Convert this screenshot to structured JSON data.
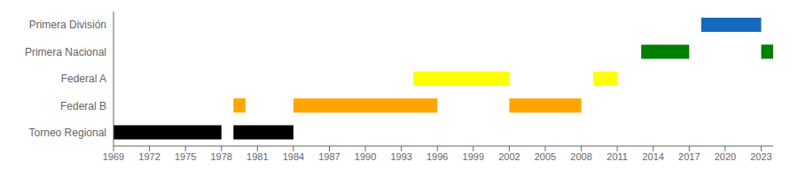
{
  "chart_data": {
    "type": "bar",
    "orientation": "horizontal",
    "categories": [
      "Primera División",
      "Primera Nacional",
      "Federal A",
      "Federal B",
      "Torneo Regional"
    ],
    "values": [
      [
        [
          2018,
          2023
        ]
      ],
      [
        [
          2013,
          2017
        ],
        [
          2023,
          2024
        ]
      ],
      [
        [
          1994,
          2002
        ],
        [
          2009,
          2011
        ]
      ],
      [
        [
          1979,
          1980
        ],
        [
          1984,
          1996
        ],
        [
          2002,
          2008
        ]
      ],
      [
        [
          1969,
          1978
        ],
        [
          1979,
          1984
        ]
      ]
    ],
    "colors": [
      "#1469BC",
      "#008000",
      "#FFFF00",
      "#FFA500",
      "#000000"
    ],
    "xlim": [
      1969,
      2024
    ],
    "xticks": [
      1969,
      1972,
      1975,
      1978,
      1981,
      1984,
      1987,
      1990,
      1993,
      1996,
      1999,
      2002,
      2005,
      2008,
      2011,
      2014,
      2017,
      2020,
      2023
    ],
    "grid": false
  }
}
